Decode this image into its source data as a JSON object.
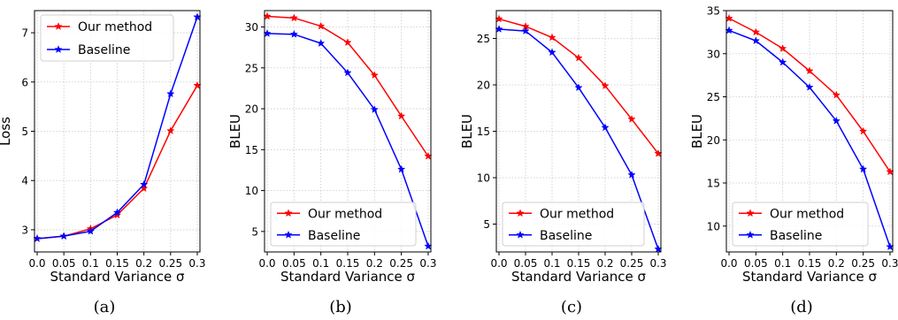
{
  "chart_data": [
    {
      "type": "line",
      "panel_label": "(a)",
      "xlabel": "Standard Variance σ",
      "ylabel": "Loss",
      "x": [
        0.0,
        0.05,
        0.1,
        0.15,
        0.2,
        0.25,
        0.3
      ],
      "x_tick_labels": [
        "0.0",
        "0.05",
        "0.1",
        "0.15",
        "0.2",
        "0.25",
        "0.3"
      ],
      "xlim": [
        -0.005,
        0.305
      ],
      "ylim": [
        2.55,
        7.45
      ],
      "yticks": [
        3,
        4,
        5,
        6,
        7
      ],
      "grid": true,
      "legend": "top-left",
      "series": [
        {
          "name": "Our method",
          "color": "#ff0000",
          "values": [
            2.82,
            2.87,
            3.02,
            3.3,
            3.84,
            5.01,
            5.93
          ]
        },
        {
          "name": "Baseline",
          "color": "#0000ff",
          "values": [
            2.82,
            2.87,
            2.97,
            3.35,
            3.92,
            5.76,
            7.32
          ]
        }
      ]
    },
    {
      "type": "line",
      "panel_label": "(b)",
      "xlabel": "Standard Variance σ",
      "ylabel": "BLEU",
      "x": [
        0.0,
        0.05,
        0.1,
        0.15,
        0.2,
        0.25,
        0.3
      ],
      "x_tick_labels": [
        "0.0",
        "0.05",
        "0.1",
        "0.15",
        "0.2",
        "0.25",
        "0.3"
      ],
      "xlim": [
        -0.005,
        0.305
      ],
      "ylim": [
        2.5,
        32.0
      ],
      "yticks": [
        5,
        10,
        15,
        20,
        25,
        30
      ],
      "grid": true,
      "legend": "bottom-left",
      "series": [
        {
          "name": "Our method",
          "color": "#ff0000",
          "values": [
            31.3,
            31.1,
            30.1,
            28.1,
            24.1,
            19.1,
            14.2
          ]
        },
        {
          "name": "Baseline",
          "color": "#0000ff",
          "values": [
            29.2,
            29.1,
            28.0,
            24.4,
            19.9,
            12.6,
            3.2
          ]
        }
      ]
    },
    {
      "type": "line",
      "panel_label": "(c)",
      "xlabel": "Standard Variance σ",
      "ylabel": "BLEU",
      "x": [
        0.0,
        0.05,
        0.1,
        0.15,
        0.2,
        0.25,
        0.3
      ],
      "x_tick_labels": [
        "0.0",
        "0.05",
        "0.1",
        "0.15",
        "0.2",
        "0.25",
        "0.3"
      ],
      "xlim": [
        -0.005,
        0.305
      ],
      "ylim": [
        2.0,
        28.0
      ],
      "yticks": [
        5,
        10,
        15,
        20,
        25
      ],
      "grid": true,
      "legend": "bottom-left",
      "series": [
        {
          "name": "Our method",
          "color": "#ff0000",
          "values": [
            27.1,
            26.3,
            25.1,
            22.9,
            19.9,
            16.3,
            12.6
          ]
        },
        {
          "name": "Baseline",
          "color": "#0000ff",
          "values": [
            26.0,
            25.8,
            23.5,
            19.7,
            15.4,
            10.3,
            2.3
          ]
        }
      ]
    },
    {
      "type": "line",
      "panel_label": "(d)",
      "xlabel": "Standard Variance σ",
      "ylabel": "BLEU",
      "x": [
        0.0,
        0.05,
        0.1,
        0.15,
        0.2,
        0.25,
        0.3
      ],
      "x_tick_labels": [
        "0.0",
        "0.05",
        "0.1",
        "0.15",
        "0.2",
        "0.25",
        "0.3"
      ],
      "xlim": [
        -0.005,
        0.305
      ],
      "ylim": [
        7.0,
        35.0
      ],
      "yticks": [
        10,
        15,
        20,
        25,
        30,
        35
      ],
      "grid": true,
      "legend": "bottom-left",
      "series": [
        {
          "name": "Our method",
          "color": "#ff0000",
          "values": [
            34.1,
            32.5,
            30.6,
            28.0,
            25.2,
            21.0,
            16.3
          ]
        },
        {
          "name": "Baseline",
          "color": "#0000ff",
          "values": [
            32.7,
            31.5,
            29.0,
            26.1,
            22.2,
            16.6,
            7.6
          ]
        }
      ]
    }
  ]
}
